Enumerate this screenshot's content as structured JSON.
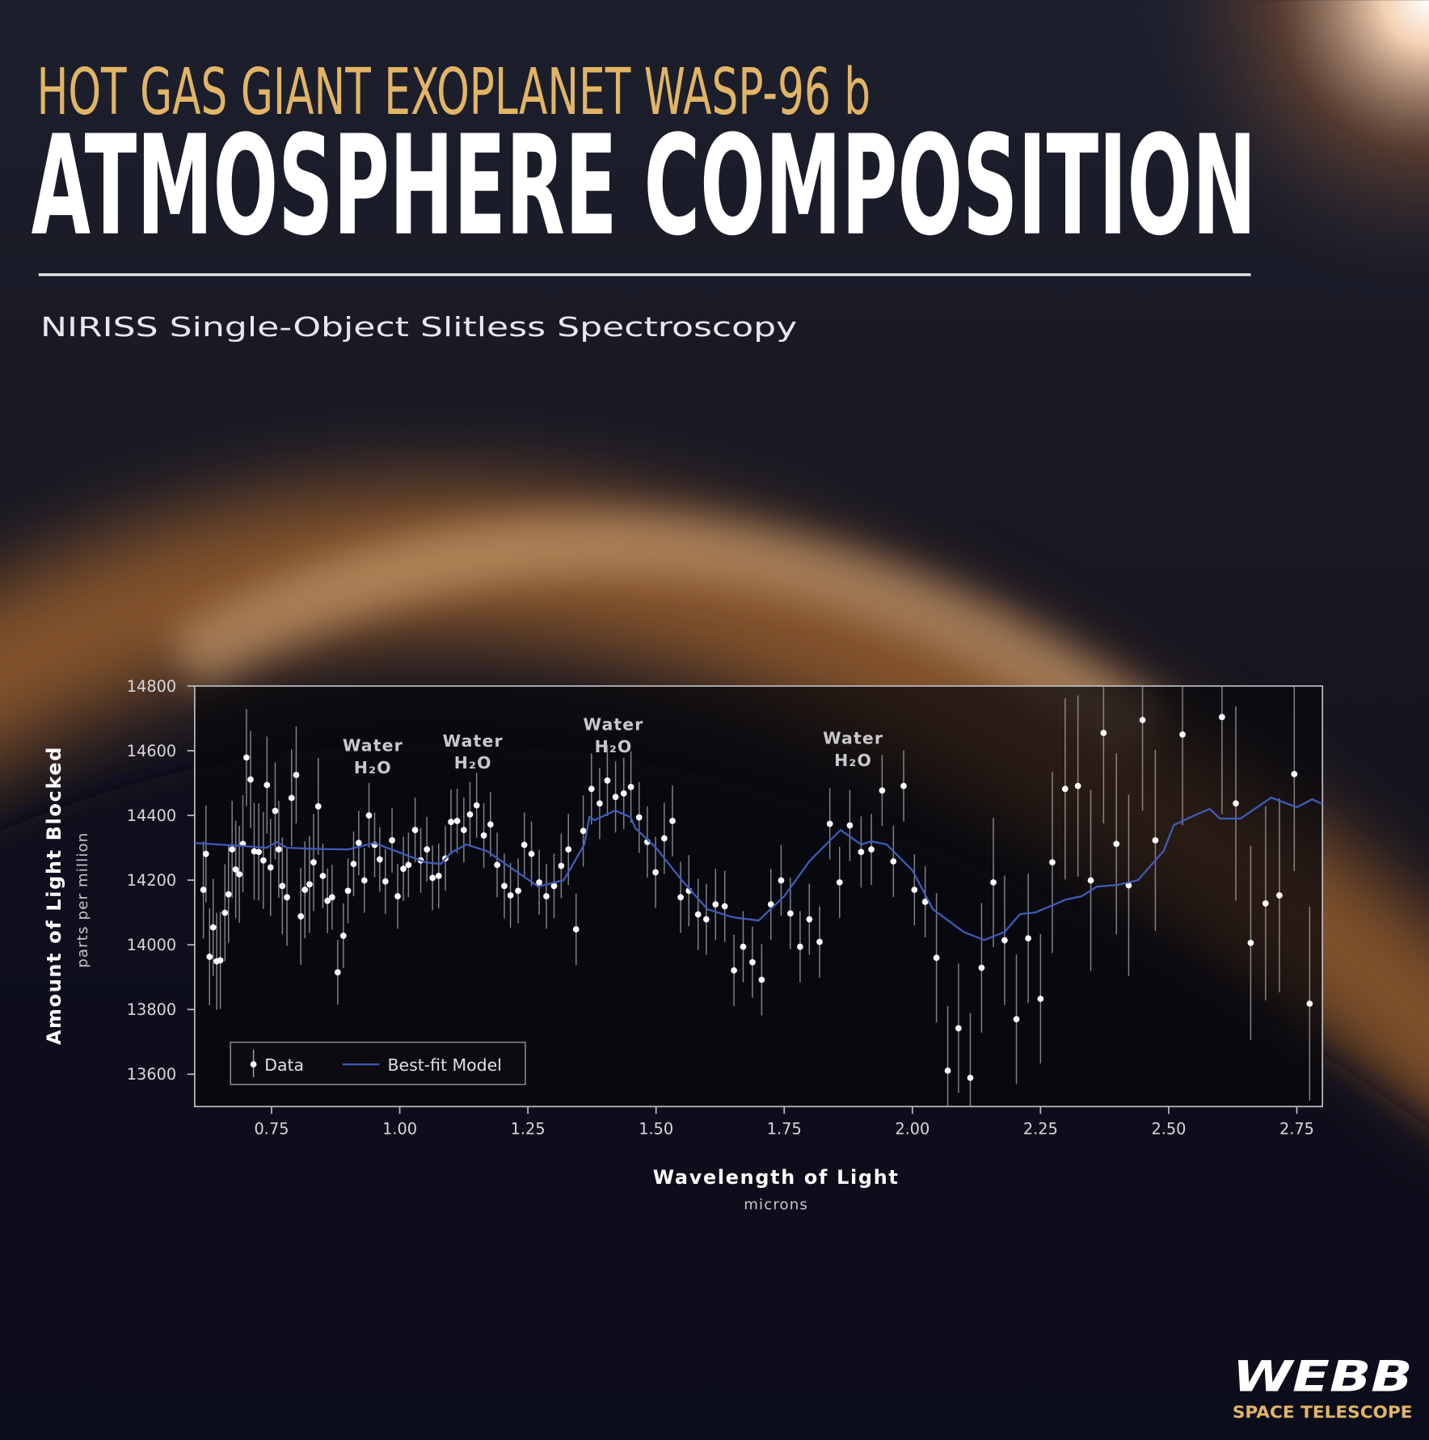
{
  "header": {
    "kicker": "HOT GAS GIANT EXOPLANET WASP-96 b",
    "title": "ATMOSPHERE COMPOSITION",
    "subtitle": "NIRISS Single-Object Slitless Spectroscopy"
  },
  "logo": {
    "name": "WEBB",
    "tagline": "SPACE TELESCOPE"
  },
  "chart_data": {
    "type": "scatter",
    "x_label": "Wavelength of Light",
    "x_unit": "microns",
    "y_label": "Amount of Light Blocked",
    "y_unit": "parts per million",
    "xlim": [
      0.6,
      2.8
    ],
    "ylim": [
      13500,
      14800
    ],
    "xticks": [
      0.75,
      {
        "value": 1,
        "label": "1.00"
      },
      1.25,
      {
        "value": 1.5,
        "label": "1.50"
      },
      1.75,
      {
        "value": 2,
        "label": "2.00"
      },
      2.25,
      {
        "value": 2.5,
        "label": "2.50"
      },
      2.75
    ],
    "yticks": [
      13600,
      13800,
      14000,
      14200,
      14400,
      14600,
      14800
    ],
    "legend": "bottom-left",
    "annotations": [
      {
        "text": "Water",
        "formula": "H₂O"
      },
      {
        "text": "Water",
        "formula": "H₂O"
      },
      {
        "text": "Water",
        "formula": "H₂O"
      },
      {
        "text": "Water",
        "formula": "H₂O"
      }
    ],
    "series": [
      {
        "name": "Data",
        "type": "scatter",
        "color": "#ffffff",
        "error_color": "#a0a0a8",
        "x": [
          0.617,
          0.622,
          0.629,
          0.636,
          0.643,
          0.65,
          0.659,
          0.666,
          0.673,
          0.68,
          0.687,
          0.694,
          0.701,
          0.709,
          0.716,
          0.725,
          0.734,
          0.741,
          0.748,
          0.757,
          0.764,
          0.771,
          0.78,
          0.789,
          0.798,
          0.807,
          0.815,
          0.824,
          0.832,
          0.841,
          0.85,
          0.859,
          0.868,
          0.879,
          0.89,
          0.899,
          0.91,
          0.92,
          0.931,
          0.94,
          0.951,
          0.961,
          0.972,
          0.985,
          0.996,
          1.007,
          1.017,
          1.03,
          1.041,
          1.053,
          1.064,
          1.076,
          1.089,
          1.1,
          1.112,
          1.125,
          1.137,
          1.15,
          1.164,
          1.177,
          1.19,
          1.204,
          1.216,
          1.231,
          1.243,
          1.257,
          1.272,
          1.286,
          1.301,
          1.315,
          1.329,
          1.344,
          1.358,
          1.374,
          1.39,
          1.405,
          1.421,
          1.437,
          1.451,
          1.467,
          1.483,
          1.499,
          1.516,
          1.532,
          1.548,
          1.564,
          1.582,
          1.598,
          1.616,
          1.634,
          1.652,
          1.67,
          1.688,
          1.706,
          1.724,
          1.744,
          1.762,
          1.781,
          1.799,
          1.819,
          1.839,
          1.858,
          1.878,
          1.9,
          1.92,
          1.941,
          1.963,
          1.983,
          2.004,
          2.025,
          2.047,
          2.069,
          2.09,
          2.113,
          2.135,
          2.158,
          2.18,
          2.203,
          2.226,
          2.25,
          2.273,
          2.298,
          2.323,
          2.348,
          2.373,
          2.398,
          2.422,
          2.449,
          2.474,
          2.527,
          2.604,
          2.631,
          2.66,
          2.689,
          2.716,
          2.745,
          2.775
        ],
        "values": [
          14170,
          14281,
          13963,
          14054,
          13949,
          13952,
          14099,
          14156,
          14295,
          14233,
          14218,
          14312,
          14579,
          14511,
          14289,
          14287,
          14261,
          14494,
          14239,
          14414,
          14295,
          14182,
          14147,
          14454,
          14525,
          14088,
          14170,
          14187,
          14255,
          14428,
          14213,
          14136,
          14147,
          13915,
          14028,
          14167,
          14250,
          14315,
          14199,
          14400,
          14309,
          14264,
          14196,
          14323,
          14150,
          14235,
          14247,
          14355,
          14261,
          14295,
          14207,
          14213,
          14267,
          14380,
          14383,
          14355,
          14403,
          14431,
          14338,
          14372,
          14247,
          14182,
          14153,
          14167,
          14309,
          14281,
          14193,
          14150,
          14182,
          14244,
          14295,
          14048,
          14352,
          14482,
          14437,
          14508,
          14457,
          14468,
          14488,
          14394,
          14318,
          14224,
          14329,
          14383,
          14147,
          14167,
          14094,
          14079,
          14125,
          14119,
          13921,
          13994,
          13946,
          13892,
          14125,
          14199,
          14097,
          13994,
          14079,
          14009,
          14374,
          14193,
          14369,
          14287,
          14295,
          14477,
          14258,
          14491,
          14170,
          14133,
          13960,
          13611,
          13742,
          13589,
          13929,
          14193,
          14014,
          13770,
          14020,
          13833,
          14255,
          14482,
          14491,
          14199,
          14655,
          14312,
          14184,
          14695,
          14323,
          14650,
          14704,
          14437,
          14006,
          14128,
          14153,
          14528,
          13818
        ],
        "errors": [
          150,
          150,
          150,
          150,
          150,
          150,
          150,
          150,
          150,
          150,
          150,
          150,
          150,
          150,
          150,
          150,
          150,
          150,
          150,
          150,
          150,
          150,
          150,
          150,
          150,
          150,
          150,
          150,
          150,
          150,
          100,
          100,
          100,
          100,
          100,
          100,
          100,
          100,
          100,
          100,
          100,
          100,
          100,
          100,
          100,
          100,
          100,
          100,
          100,
          100,
          100,
          100,
          100,
          100,
          100,
          100,
          100,
          100,
          100,
          100,
          100,
          100,
          100,
          100,
          100,
          100,
          100,
          100,
          100,
          100,
          110,
          110,
          110,
          110,
          110,
          110,
          110,
          110,
          110,
          110,
          110,
          110,
          110,
          110,
          110,
          110,
          110,
          110,
          110,
          110,
          110,
          110,
          110,
          110,
          110,
          110,
          110,
          110,
          110,
          110,
          110,
          110,
          110,
          110,
          110,
          110,
          110,
          110,
          110,
          110,
          200,
          200,
          200,
          200,
          200,
          200,
          200,
          200,
          200,
          200,
          280,
          280,
          280,
          280,
          280,
          280,
          280,
          280,
          280,
          280,
          300,
          300,
          300,
          300,
          300,
          300,
          300
        ]
      },
      {
        "name": "Best-fit Model",
        "type": "line",
        "color": "#3f5cb8",
        "x": [
          0.6,
          0.7,
          0.74,
          0.76,
          0.78,
          0.85,
          0.9,
          0.95,
          1.0,
          1.05,
          1.08,
          1.1,
          1.13,
          1.17,
          1.22,
          1.27,
          1.32,
          1.36,
          1.37,
          1.38,
          1.42,
          1.45,
          1.46,
          1.5,
          1.55,
          1.6,
          1.65,
          1.7,
          1.75,
          1.8,
          1.86,
          1.9,
          1.92,
          1.95,
          2.0,
          2.04,
          2.1,
          2.14,
          2.18,
          2.21,
          2.24,
          2.3,
          2.33,
          2.36,
          2.4,
          2.44,
          2.49,
          2.51,
          2.55,
          2.58,
          2.6,
          2.64,
          2.7,
          2.75,
          2.78,
          2.8
        ],
        "values": [
          14315,
          14305,
          14300,
          14318,
          14300,
          14296,
          14295,
          14315,
          14285,
          14255,
          14250,
          14285,
          14310,
          14290,
          14235,
          14180,
          14200,
          14310,
          14395,
          14385,
          14415,
          14395,
          14360,
          14300,
          14200,
          14110,
          14085,
          14075,
          14150,
          14260,
          14355,
          14310,
          14320,
          14310,
          14230,
          14110,
          14040,
          14015,
          14040,
          14095,
          14100,
          14140,
          14150,
          14180,
          14185,
          14200,
          14290,
          14370,
          14400,
          14420,
          14390,
          14390,
          14455,
          14425,
          14450,
          14435
        ]
      }
    ]
  }
}
